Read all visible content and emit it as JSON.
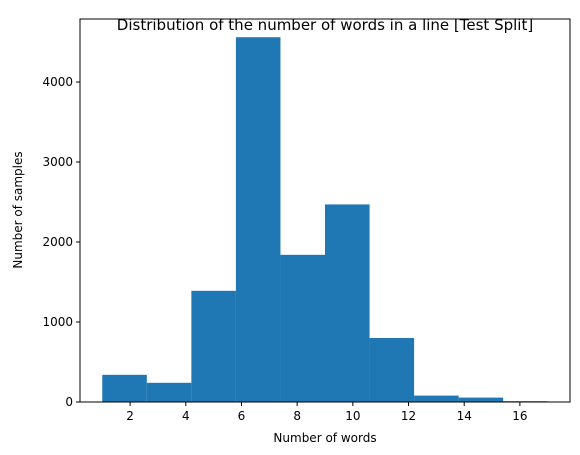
{
  "chart_data": {
    "type": "bar",
    "title": "Distribution of the number of words in a line [Test Split]",
    "xlabel": "Number of words",
    "ylabel": "Number of samples",
    "bin_edges": [
      1,
      2.6,
      4.2,
      5.8,
      7.4,
      9.0,
      10.6,
      12.2,
      13.8,
      15.4,
      17.0
    ],
    "values": [
      340,
      240,
      1390,
      4560,
      1840,
      2470,
      800,
      80,
      55,
      10
    ],
    "xlim": [
      0.2,
      17.8
    ],
    "ylim": [
      0,
      4788
    ],
    "xticks": [
      2,
      4,
      6,
      8,
      10,
      12,
      14,
      16
    ],
    "yticks": [
      0,
      1000,
      2000,
      3000,
      4000
    ],
    "xtick_labels": [
      "2",
      "4",
      "6",
      "8",
      "10",
      "12",
      "14",
      "16"
    ],
    "ytick_labels": [
      "0",
      "1000",
      "2000",
      "3000",
      "4000"
    ],
    "bar_color": "#1f77b4",
    "grid": false
  }
}
